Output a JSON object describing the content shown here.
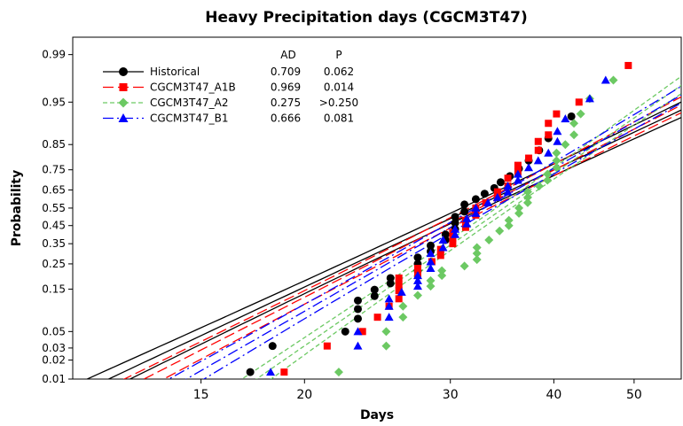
{
  "chart_data": {
    "type": "scatter",
    "title": "Heavy Precipitation days (CGCM3T47)",
    "xlabel": "Days",
    "ylabel": "Probability",
    "x_scale": "log",
    "y_scale": "normal-probability",
    "xlim": [
      10.5,
      57
    ],
    "ylim": [
      0.01,
      0.995
    ],
    "x_ticks": [
      15,
      20,
      30,
      40,
      50
    ],
    "y_ticks": [
      0.01,
      0.02,
      0.03,
      0.05,
      0.15,
      0.25,
      0.35,
      0.45,
      0.55,
      0.65,
      0.75,
      0.85,
      0.95,
      0.99
    ],
    "y_tick_labels": [
      "0.01",
      "0.02",
      "0.03",
      "0.05",
      "0.15",
      "0.25",
      "0.35",
      "0.45",
      "0.55",
      "0.65",
      "0.75",
      "0.85",
      "0.95",
      "0.99"
    ],
    "legend_header": {
      "ad": "AD",
      "p": "P"
    },
    "legend_position": "top-left",
    "series": [
      {
        "name": "Historical",
        "ad": "0.709",
        "p": "0.062",
        "color": "#000000",
        "marker": "circle",
        "dash": "none",
        "fit": {
          "median": 30.3,
          "x_at_p01": 11.6
        },
        "points": [
          [
            17.2,
            0.013
          ],
          [
            18.3,
            0.032
          ],
          [
            22.4,
            0.05
          ],
          [
            23.2,
            0.072
          ],
          [
            23.2,
            0.093
          ],
          [
            23.2,
            0.115
          ],
          [
            24.3,
            0.128
          ],
          [
            24.3,
            0.148
          ],
          [
            25.4,
            0.17
          ],
          [
            25.4,
            0.19
          ],
          [
            27.4,
            0.22
          ],
          [
            27.4,
            0.25
          ],
          [
            27.4,
            0.28
          ],
          [
            28.4,
            0.31
          ],
          [
            28.4,
            0.34
          ],
          [
            29.6,
            0.37
          ],
          [
            29.6,
            0.4
          ],
          [
            30.4,
            0.43
          ],
          [
            30.4,
            0.465
          ],
          [
            30.4,
            0.5
          ],
          [
            31.2,
            0.53
          ],
          [
            31.2,
            0.57
          ],
          [
            32.2,
            0.6
          ],
          [
            33,
            0.63
          ],
          [
            33.9,
            0.66
          ],
          [
            34.5,
            0.69
          ],
          [
            35.4,
            0.72
          ],
          [
            36.3,
            0.755
          ],
          [
            37.3,
            0.79
          ],
          [
            38.4,
            0.83
          ],
          [
            39.4,
            0.87
          ],
          [
            42,
            0.925
          ]
        ]
      },
      {
        "name": "CGCM3T47_A1B",
        "ad": "0.969",
        "p": "0.014",
        "color": "#ff0000",
        "marker": "square",
        "dash": "long",
        "fit": {
          "median": 31,
          "x_at_p01": 12.8
        },
        "points": [
          [
            18.9,
            0.013
          ],
          [
            21.3,
            0.032
          ],
          [
            23.5,
            0.05
          ],
          [
            24.5,
            0.075
          ],
          [
            25.3,
            0.1
          ],
          [
            26,
            0.12
          ],
          [
            26,
            0.145
          ],
          [
            26,
            0.165
          ],
          [
            26,
            0.19
          ],
          [
            27.4,
            0.2
          ],
          [
            27.4,
            0.23
          ],
          [
            28.5,
            0.26
          ],
          [
            29.2,
            0.29
          ],
          [
            29.2,
            0.32
          ],
          [
            30.2,
            0.35
          ],
          [
            30.2,
            0.38
          ],
          [
            30.2,
            0.41
          ],
          [
            31.3,
            0.44
          ],
          [
            31.3,
            0.48
          ],
          [
            32.2,
            0.51
          ],
          [
            32.2,
            0.55
          ],
          [
            33.1,
            0.58
          ],
          [
            34.2,
            0.61
          ],
          [
            34.2,
            0.64
          ],
          [
            35.2,
            0.67
          ],
          [
            35.2,
            0.71
          ],
          [
            36.2,
            0.74
          ],
          [
            36.2,
            0.77
          ],
          [
            37.3,
            0.8
          ],
          [
            38.3,
            0.83
          ],
          [
            38.3,
            0.86
          ],
          [
            39.4,
            0.88
          ],
          [
            39.4,
            0.91
          ],
          [
            40.3,
            0.93
          ],
          [
            42.9,
            0.95
          ],
          [
            49.2,
            0.985
          ]
        ]
      },
      {
        "name": "CGCM3T47_A2",
        "ad": "0.275",
        "p": ">0.250",
        "color": "#6cc963",
        "marker": "diamond",
        "dash": "short",
        "fit": {
          "median": 33.6,
          "x_at_p01": 17.5
        },
        "points": [
          [
            22,
            0.013
          ],
          [
            25.1,
            0.032
          ],
          [
            25.1,
            0.05
          ],
          [
            26.3,
            0.075
          ],
          [
            26.3,
            0.1
          ],
          [
            27.4,
            0.13
          ],
          [
            28.4,
            0.16
          ],
          [
            28.4,
            0.18
          ],
          [
            29.3,
            0.2
          ],
          [
            29.3,
            0.22
          ],
          [
            31.2,
            0.24
          ],
          [
            32.3,
            0.27
          ],
          [
            32.3,
            0.3
          ],
          [
            32.3,
            0.33
          ],
          [
            33.4,
            0.37
          ],
          [
            34.4,
            0.42
          ],
          [
            35.3,
            0.45
          ],
          [
            35.3,
            0.48
          ],
          [
            36.3,
            0.52
          ],
          [
            36.3,
            0.55
          ],
          [
            37.2,
            0.58
          ],
          [
            37.2,
            0.61
          ],
          [
            37.2,
            0.64
          ],
          [
            38.4,
            0.67
          ],
          [
            39.3,
            0.7
          ],
          [
            39.3,
            0.73
          ],
          [
            40.3,
            0.76
          ],
          [
            40.3,
            0.79
          ],
          [
            40.3,
            0.82
          ],
          [
            41.3,
            0.85
          ],
          [
            42.3,
            0.88
          ],
          [
            42.3,
            0.91
          ],
          [
            43.1,
            0.93
          ],
          [
            44.2,
            0.955
          ],
          [
            47.2,
            0.975
          ]
        ]
      },
      {
        "name": "CGCM3T47_B1",
        "ad": "0.666",
        "p": "0.081",
        "color": "#0000ff",
        "marker": "triangle",
        "dash": "dashdot",
        "fit": {
          "median": 31.6,
          "x_at_p01": 14.4
        },
        "points": [
          [
            18.2,
            0.013
          ],
          [
            23.2,
            0.032
          ],
          [
            23.2,
            0.05
          ],
          [
            25.3,
            0.075
          ],
          [
            25.3,
            0.1
          ],
          [
            25.3,
            0.12
          ],
          [
            26.2,
            0.14
          ],
          [
            27.4,
            0.16
          ],
          [
            27.4,
            0.18
          ],
          [
            27.4,
            0.2
          ],
          [
            28.4,
            0.23
          ],
          [
            28.4,
            0.26
          ],
          [
            28.4,
            0.3
          ],
          [
            29.4,
            0.33
          ],
          [
            29.4,
            0.37
          ],
          [
            30.4,
            0.4
          ],
          [
            30.4,
            0.43
          ],
          [
            31.4,
            0.46
          ],
          [
            31.4,
            0.49
          ],
          [
            32.2,
            0.52
          ],
          [
            32.2,
            0.55
          ],
          [
            33.3,
            0.58
          ],
          [
            34.2,
            0.61
          ],
          [
            35.2,
            0.64
          ],
          [
            35.2,
            0.67
          ],
          [
            36.2,
            0.7
          ],
          [
            36.2,
            0.73
          ],
          [
            37.3,
            0.76
          ],
          [
            38.3,
            0.79
          ],
          [
            39.4,
            0.82
          ],
          [
            40.4,
            0.86
          ],
          [
            40.4,
            0.89
          ],
          [
            41.3,
            0.92
          ],
          [
            44.2,
            0.955
          ],
          [
            46.2,
            0.975
          ]
        ]
      }
    ]
  }
}
